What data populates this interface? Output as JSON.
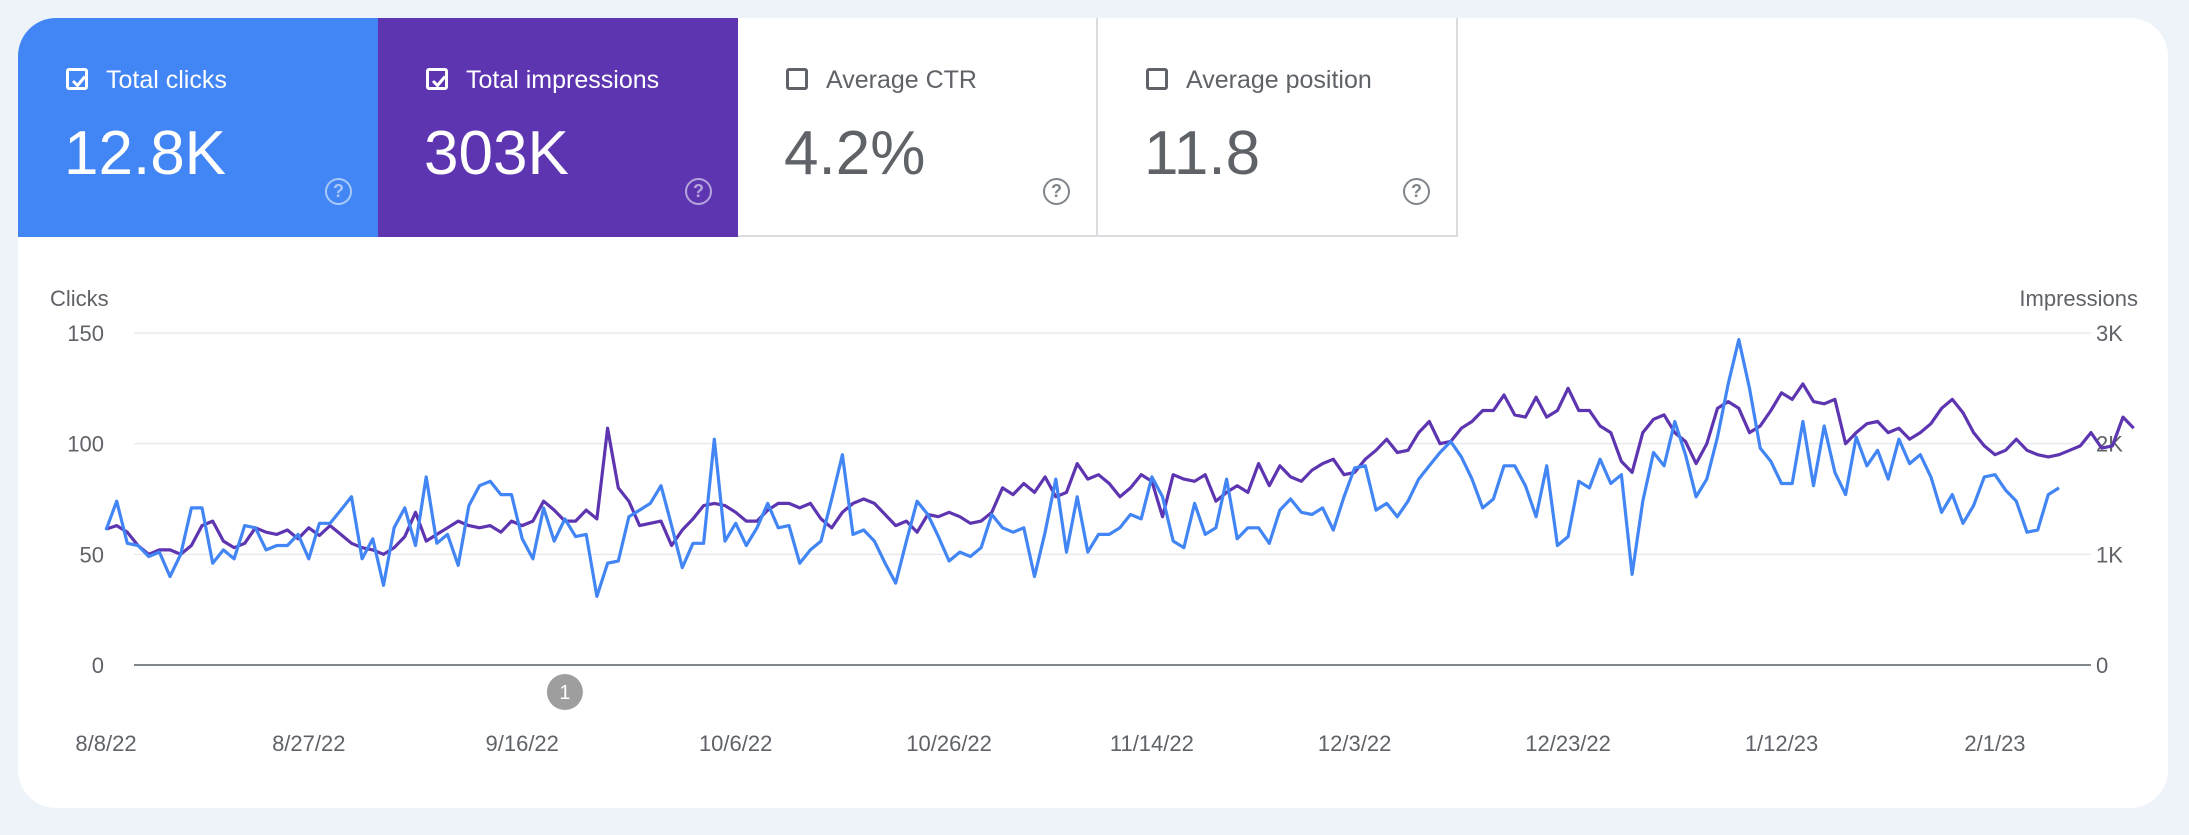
{
  "metrics": [
    {
      "label": "Total clicks",
      "value": "12.8K",
      "checked": true,
      "color": "#4285f4"
    },
    {
      "label": "Total impressions",
      "value": "303K",
      "checked": true,
      "color": "#5e35b1"
    },
    {
      "label": "Average CTR",
      "value": "4.2%",
      "checked": false,
      "color": "#ffffff"
    },
    {
      "label": "Average position",
      "value": "11.8",
      "checked": false,
      "color": "#ffffff"
    }
  ],
  "help_glyph": "?",
  "chart_data": {
    "type": "line",
    "left_axis_title": "Clicks",
    "right_axis_title": "Impressions",
    "left_ticks": [
      "0",
      "50",
      "100",
      "150"
    ],
    "left_tick_values": [
      0,
      50,
      100,
      150
    ],
    "right_ticks": [
      "0",
      "1K",
      "2K",
      "3K"
    ],
    "right_tick_values": [
      0,
      1000,
      2000,
      3000
    ],
    "ylim_left": [
      0,
      150
    ],
    "ylim_right": [
      0,
      3000
    ],
    "x_start": "2022-08-08",
    "x_ticks": [
      "8/8/22",
      "8/27/22",
      "9/16/22",
      "10/6/22",
      "10/26/22",
      "11/14/22",
      "12/3/22",
      "12/23/22",
      "1/12/23",
      "2/1/23"
    ],
    "annotation": {
      "label": "1",
      "date": "2022-09-20"
    },
    "grid": true,
    "series": [
      {
        "name": "Total clicks",
        "color": "#4285f4",
        "axis": "left",
        "values": [
          61,
          74,
          55,
          54,
          49,
          51,
          40,
          50,
          71,
          71,
          46,
          52,
          48,
          63,
          62,
          52,
          54,
          54,
          59,
          48,
          64,
          64,
          70,
          76,
          48,
          57,
          36,
          62,
          71,
          54,
          85,
          55,
          59,
          45,
          72,
          81,
          83,
          77,
          77,
          57,
          48,
          71,
          56,
          66,
          58,
          59,
          31,
          46,
          47,
          67,
          70,
          73,
          81,
          63,
          44,
          55,
          55,
          102,
          56,
          64,
          54,
          62,
          73,
          62,
          63,
          46,
          52,
          56,
          75,
          95,
          59,
          61,
          56,
          46,
          37,
          56,
          74,
          68,
          58,
          47,
          51,
          49,
          53,
          68,
          62,
          60,
          62,
          40,
          60,
          84,
          51,
          76,
          51,
          59,
          59,
          62,
          68,
          66,
          85,
          76,
          56,
          53,
          73,
          59,
          62,
          84,
          57,
          62,
          62,
          55,
          70,
          75,
          69,
          68,
          71,
          61,
          76,
          89,
          90,
          70,
          73,
          67,
          74,
          84,
          90,
          96,
          101,
          94,
          84,
          71,
          75,
          90,
          90,
          81,
          67,
          90,
          54,
          58,
          83,
          80,
          93,
          82,
          86,
          41,
          74,
          96,
          90,
          110,
          95,
          76,
          84,
          103,
          127,
          147,
          125,
          98,
          92,
          82,
          82,
          110,
          81,
          108,
          87,
          77,
          103,
          90,
          97,
          84,
          102,
          91,
          95,
          85,
          69,
          77,
          64,
          72,
          85,
          86,
          79,
          74,
          60,
          61,
          77,
          80
        ],
        "raw": [
          1228,
          1260,
          1200,
          1080,
          1000,
          1040,
          1040,
          1000,
          1080,
          1260,
          1300,
          1120,
          1060,
          1100,
          1240,
          1200,
          1180,
          1220,
          1140,
          1240,
          1170,
          1260,
          1180,
          1100,
          1060,
          1040,
          1000,
          1060,
          1160,
          1380,
          1120,
          1180,
          1240,
          1300,
          1260,
          1240,
          1260,
          1200,
          1300,
          1260,
          1300,
          1480,
          1400,
          1300,
          1300,
          1400,
          1320,
          2140,
          1600,
          1480,
          1260,
          1280,
          1300,
          1080,
          1220,
          1320,
          1440,
          1460,
          1440,
          1380,
          1300,
          1300,
          1400,
          1460,
          1460,
          1420,
          1460,
          1320,
          1240,
          1380,
          1460,
          1500,
          1460,
          1360,
          1260,
          1300,
          1200,
          1360,
          1340,
          1380,
          1340,
          1280,
          1300,
          1380,
          1600,
          1540,
          1640,
          1560,
          1700,
          1520,
          1560,
          1820,
          1680,
          1720,
          1640,
          1520,
          1600,
          1720,
          1660,
          1340,
          1720,
          1680,
          1660,
          1720,
          1480,
          1560,
          1620,
          1560,
          1820,
          1620,
          1800,
          1700,
          1660,
          1760,
          1820,
          1860,
          1720,
          1740,
          1860,
          1940,
          2040,
          1920,
          1940,
          2100,
          2200,
          2000,
          2020,
          2140,
          2200,
          2300,
          2300,
          2440,
          2260,
          2240,
          2420,
          2240,
          2300,
          2500,
          2300,
          2300,
          2160,
          2100,
          1840,
          1740,
          2100,
          2220,
          2260,
          2100,
          2020,
          1820,
          2000,
          2320,
          2380,
          2320,
          2100,
          2160,
          2300,
          2460,
          2400,
          2540,
          2380,
          2360,
          2400,
          2000,
          2100,
          2180,
          2200,
          2100,
          2140,
          2040,
          2100,
          2180,
          2320,
          2400,
          2280,
          2100,
          1980,
          1900,
          1940,
          2040,
          1940,
          1900,
          1880,
          1900,
          1940,
          1980,
          2100,
          1960,
          1980,
          2240,
          2140
        ]
      },
      {
        "name": "Total impressions",
        "color": "#5e35b1",
        "axis": "right",
        "values": [
          1228,
          1260,
          1200,
          1080,
          1000,
          1040,
          1040,
          1000,
          1080,
          1260,
          1300,
          1120,
          1060,
          1100,
          1240,
          1200,
          1180,
          1220,
          1140,
          1240,
          1170,
          1260,
          1180,
          1100,
          1060,
          1040,
          1000,
          1060,
          1160,
          1380,
          1120,
          1180,
          1240,
          1300,
          1260,
          1240,
          1260,
          1200,
          1300,
          1260,
          1300,
          1480,
          1400,
          1300,
          1300,
          1400,
          1320,
          2140,
          1600,
          1480,
          1260,
          1280,
          1300,
          1080,
          1220,
          1320,
          1440,
          1460,
          1440,
          1380,
          1300,
          1300,
          1400,
          1460,
          1460,
          1420,
          1460,
          1320,
          1240,
          1380,
          1460,
          1500,
          1460,
          1360,
          1260,
          1300,
          1200,
          1360,
          1340,
          1380,
          1340,
          1280,
          1300,
          1380,
          1600,
          1540,
          1640,
          1560,
          1700,
          1520,
          1560,
          1820,
          1680,
          1720,
          1640,
          1520,
          1600,
          1720,
          1660,
          1340,
          1720,
          1680,
          1660,
          1720,
          1480,
          1560,
          1620,
          1560,
          1820,
          1620,
          1800,
          1700,
          1660,
          1760,
          1820,
          1860,
          1720,
          1740,
          1860,
          1940,
          2040,
          1920,
          1940,
          2100,
          2200,
          2000,
          2020,
          2140,
          2200,
          2300,
          2300,
          2440,
          2260,
          2240,
          2420,
          2240,
          2300,
          2500,
          2300,
          2300,
          2160,
          2100,
          1840,
          1740,
          2100,
          2220,
          2260,
          2100,
          2020,
          1820,
          2000,
          2320,
          2380,
          2320,
          2100,
          2160,
          2300,
          2460,
          2400,
          2540,
          2380,
          2360,
          2400,
          2000,
          2100,
          2180,
          2200,
          2100,
          2140,
          2040,
          2100,
          2180,
          2320,
          2400,
          2280,
          2100,
          1980,
          1900,
          1940,
          2040,
          1940,
          1900,
          1880,
          1900,
          1940,
          1980,
          2100,
          1960,
          1980,
          2240,
          2140
        ]
      }
    ]
  }
}
